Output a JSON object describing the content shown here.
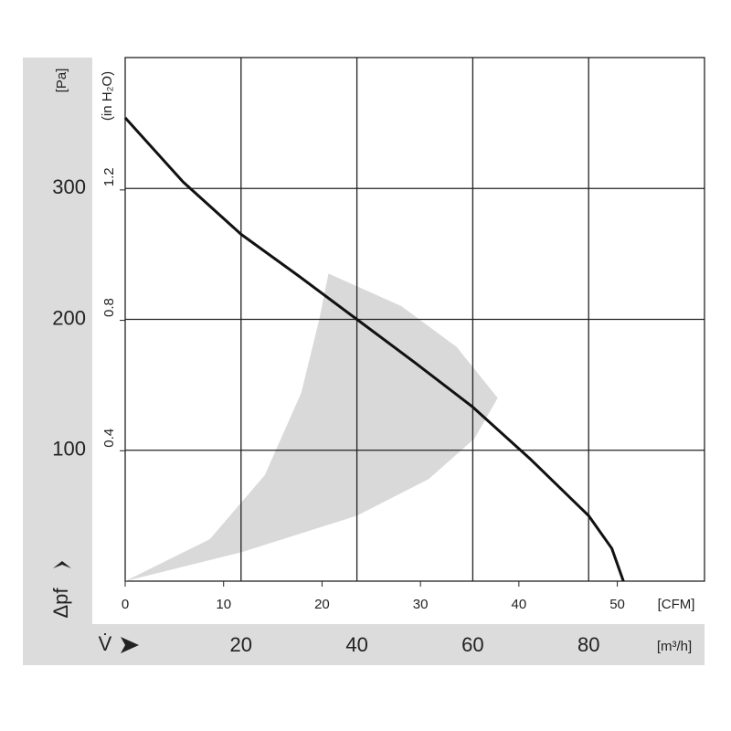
{
  "chart_data": {
    "type": "line",
    "xlabel": "V̇",
    "ylabel": "Δpf",
    "xunit": "[m³/h]",
    "yunit": "[Pa]",
    "x2unit": "[CFM]",
    "y2unit": "(in H₂O)",
    "xlim": [
      0,
      100
    ],
    "xticks": [
      20,
      40,
      60,
      80
    ],
    "ylim": [
      0,
      400
    ],
    "yticks": [
      100,
      200,
      300
    ],
    "x2lim": [
      0,
      58.86
    ],
    "x2ticks": [
      0,
      10,
      20,
      30,
      40,
      50
    ],
    "y2lim": [
      0,
      1.606
    ],
    "y2ticks": [
      0.4,
      0.8,
      1.2
    ],
    "grid": true,
    "x": [
      0,
      10,
      20,
      30,
      40,
      50,
      60,
      70,
      80,
      84,
      86
    ],
    "series": [
      {
        "color": "#111111",
        "values": [
          354,
          305,
          265,
          233,
          200,
          167,
          133,
          93,
          50,
          25,
          0
        ]
      }
    ],
    "region": {
      "color": "#d9d9d9",
      "x": [
        0,
        20,
        40,
        52.4,
        60.3,
        64.3,
        57.2,
        47.7,
        35.1,
        33.5,
        30.4,
        24.1,
        14.6
      ],
      "y": [
        0,
        22,
        50,
        78,
        109,
        140,
        179,
        210,
        235,
        200,
        144,
        81,
        32
      ]
    }
  }
}
